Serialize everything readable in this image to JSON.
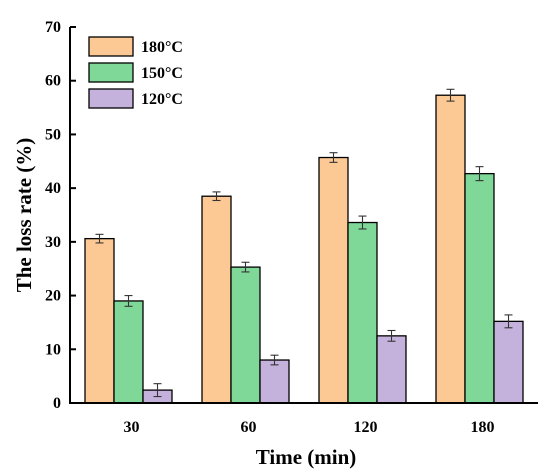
{
  "chart_data": {
    "type": "bar",
    "title": "",
    "xlabel": "Time (min)",
    "ylabel": "The loss rate (%)",
    "ylim": [
      0,
      70
    ],
    "yticks": [
      0,
      10,
      20,
      30,
      40,
      50,
      60,
      70
    ],
    "categories": [
      "30",
      "60",
      "120",
      "180"
    ],
    "grid": false,
    "legend_position": "top-left",
    "error_bars": true,
    "series": [
      {
        "name": "180°C",
        "color": "#fcc994",
        "values": [
          30.6,
          38.5,
          45.7,
          57.3
        ],
        "errors": [
          0.8,
          0.8,
          0.9,
          1.1
        ]
      },
      {
        "name": "150°C",
        "color": "#7fd898",
        "values": [
          19.0,
          25.3,
          33.6,
          42.7
        ],
        "errors": [
          1.0,
          0.9,
          1.2,
          1.3
        ]
      },
      {
        "name": "120°C",
        "color": "#c5b2dc",
        "values": [
          2.4,
          8.0,
          12.5,
          15.2
        ],
        "errors": [
          1.2,
          0.9,
          1.0,
          1.2
        ]
      }
    ]
  }
}
